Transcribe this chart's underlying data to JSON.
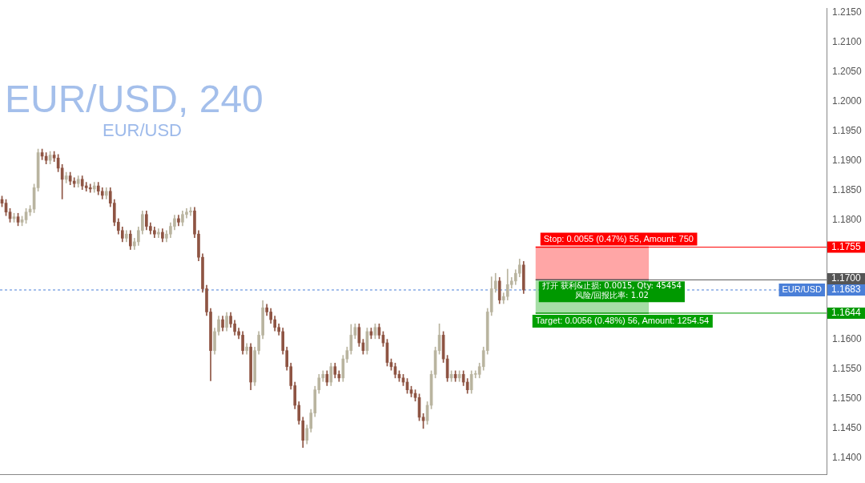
{
  "chart_data": {
    "type": "candlestick",
    "title": "EUR/USD, 240",
    "subtitle": "EUR/USD",
    "categories": [
      null,
      null,
      null,
      null,
      null,
      null,
      null,
      null,
      null,
      null,
      null,
      null,
      null,
      null,
      null,
      null,
      null,
      null,
      null,
      null,
      null,
      null,
      null,
      null,
      null,
      null,
      null,
      null,
      null,
      null,
      null,
      null,
      null,
      null,
      null,
      null,
      null,
      null,
      null,
      null,
      null,
      null,
      null,
      null,
      null,
      null,
      null,
      null,
      null,
      null,
      null,
      null,
      null,
      null,
      null,
      null,
      null,
      null,
      null,
      null,
      null,
      null,
      null,
      null,
      null,
      null,
      null,
      null,
      null,
      null,
      null,
      null,
      null,
      null,
      null,
      null,
      null,
      null,
      null,
      null,
      null,
      null,
      null,
      null,
      null,
      null,
      null,
      null,
      null,
      null,
      null,
      null,
      null,
      null,
      null,
      null,
      null,
      null,
      null,
      null,
      null,
      null,
      null,
      null,
      null,
      null,
      null,
      null,
      null,
      null,
      null,
      null,
      null,
      null,
      null,
      null,
      null,
      null,
      null,
      null,
      null,
      null,
      null,
      null,
      null,
      null,
      null,
      null,
      null,
      null,
      null,
      null,
      null,
      null,
      null,
      null,
      null,
      null,
      null,
      null,
      null,
      null,
      null,
      null,
      null,
      null,
      null,
      null,
      null,
      null,
      null,
      null,
      null,
      null,
      null,
      null,
      null,
      null,
      null,
      null,
      null,
      null,
      null,
      null,
      null,
      null,
      null,
      null,
      null,
      null,
      null,
      null,
      null,
      null,
      null,
      null,
      null,
      null,
      null,
      null,
      null,
      null,
      null,
      null,
      null,
      null,
      null,
      null,
      null,
      null,
      null,
      null,
      null,
      null,
      null,
      null,
      null,
      null,
      null,
      null,
      null,
      null,
      null,
      null,
      null,
      null
    ],
    "colors": [
      "#8e5443",
      "#8e5443",
      "#8e5443",
      "#b9b49f",
      "#8e5443",
      "#b9b49f",
      "#b9b49f",
      "#b9b49f",
      "#b9b49f",
      "#b9b49f",
      "#8e5443",
      "#8e5443",
      "#b9b49f",
      "#8e5443",
      "#8e5443",
      "#8e5443",
      "#b9b49f",
      "#8e5443",
      "#8e5443",
      "#b9b49f",
      "#8e5443",
      "#8e5443",
      "#8e5443",
      "#b9b49f",
      "#8e5443",
      "#8e5443",
      "#b9b49f",
      "#8e5443",
      "#8e5443",
      "#8e5443",
      "#8e5443",
      "#b9b49f",
      "#8e5443",
      "#b9b49f",
      "#b9b49f",
      "#b9b49f",
      "#8e5443",
      "#8e5443",
      "#8e5443",
      "#b9b49f",
      "#8e5443",
      "#b9b49f",
      "#b9b49f",
      "#b9b49f",
      "#8e5443",
      "#b9b49f",
      "#b9b49f",
      "#b9b49f",
      "#8e5443",
      "#8e5443",
      "#8e5443",
      "#8e5443",
      "#8e5443",
      "#b9b49f",
      "#b9b49f",
      "#8e5443",
      "#b9b49f",
      "#8e5443",
      "#8e5443",
      "#8e5443",
      "#8e5443",
      "#b9b49f",
      "#8e5443",
      "#b9b49f",
      "#b9b49f",
      "#b9b49f",
      "#8e5443",
      "#8e5443",
      "#8e5443",
      "#8e5443",
      "#8e5443",
      "#8e5443",
      "#8e5443",
      "#8e5443",
      "#8e5443",
      "#8e5443",
      "#b9b49f",
      "#b9b49f",
      "#b9b49f",
      "#b9b49f",
      "#b9b49f",
      "#8e5443",
      "#b9b49f",
      "#8e5443",
      "#8e5443",
      "#b9b49f",
      "#b9b49f",
      "#b9b49f",
      "#b9b49f",
      "#8e5443",
      "#8e5443",
      "#b9b49f",
      "#8e5443",
      "#b9b49f",
      "#8e5443",
      "#8e5443",
      "#8e5443",
      "#8e5443",
      "#8e5443",
      "#8e5443",
      "#8e5443",
      "#8e5443",
      "#8e5443",
      "#8e5443",
      "#8e5443",
      "#8e5443",
      "#b9b49f",
      "#b9b49f",
      "#b9b49f",
      "#b9b49f",
      "#8e5443",
      "#8e5443",
      "#b9b49f",
      "#8e5443",
      "#b9b49f",
      "#8e5443",
      "#8e5443",
      "#b9b49f",
      "#b9b49f",
      "#b9b49f",
      "#b9b49f",
      "#b9b49f",
      "#b9b49f",
      "#b9b49f",
      "#8e5443",
      "#b9b49f",
      "#b9b49f",
      "#b9b49f",
      "#b9b49f",
      "#b9b49f",
      "#8e5443",
      null,
      null,
      null,
      null,
      null,
      null,
      null,
      null,
      null,
      null,
      null,
      null,
      null,
      null,
      null,
      null,
      null,
      null,
      null,
      null,
      null,
      null,
      null,
      null,
      null,
      null,
      null,
      null,
      null,
      null,
      null,
      null,
      null,
      null,
      null,
      null,
      null,
      null,
      null,
      null,
      null,
      null,
      null,
      null,
      null,
      null,
      null,
      null,
      null,
      null,
      null,
      null,
      null,
      null,
      null,
      null,
      null,
      null,
      null,
      null,
      null,
      null,
      null,
      null,
      null,
      null,
      null,
      null,
      null,
      null,
      null,
      null,
      null,
      null,
      null
    ],
    "ohlc": [
      [
        1.1835,
        1.1841,
        1.1823,
        1.1829
      ],
      [
        1.1829,
        1.1835,
        1.1808,
        1.1814
      ],
      [
        1.1814,
        1.182,
        1.1797,
        1.1803
      ],
      [
        1.1803,
        1.1812,
        1.1797,
        1.1806
      ],
      [
        1.1806,
        1.1812,
        1.1791,
        1.1797
      ],
      [
        1.1797,
        1.1807,
        1.1791,
        1.1801
      ],
      [
        1.1801,
        1.182,
        1.1795,
        1.1814
      ],
      [
        1.1814,
        1.1825,
        1.1808,
        1.1819
      ],
      [
        1.1819,
        1.1861,
        1.1813,
        1.1855
      ],
      [
        1.1855,
        1.192,
        1.1849,
        1.1914
      ],
      [
        1.1914,
        1.192,
        1.1902,
        1.1908
      ],
      [
        1.1908,
        1.1914,
        1.1895,
        1.1901
      ],
      [
        1.1901,
        1.1916,
        1.1895,
        1.191
      ],
      [
        1.191,
        1.1916,
        1.1899,
        1.1905
      ],
      [
        1.1905,
        1.1911,
        1.1882,
        1.1888
      ],
      [
        1.1888,
        1.1894,
        1.1836,
        1.1869
      ],
      [
        1.1869,
        1.1881,
        1.1863,
        1.1875
      ],
      [
        1.1875,
        1.1881,
        1.186,
        1.1866
      ],
      [
        1.1866,
        1.1872,
        1.1856,
        1.1862
      ],
      [
        1.1862,
        1.1875,
        1.1856,
        1.1869
      ],
      [
        1.1869,
        1.1875,
        1.1852,
        1.1858
      ],
      [
        1.1858,
        1.1864,
        1.1849,
        1.1855
      ],
      [
        1.1855,
        1.1861,
        1.1847,
        1.1853
      ],
      [
        1.1853,
        1.1864,
        1.1847,
        1.1858
      ],
      [
        1.1858,
        1.1864,
        1.1843,
        1.1849
      ],
      [
        1.1849,
        1.1855,
        1.1836,
        1.1842
      ],
      [
        1.1842,
        1.1855,
        1.1836,
        1.1849
      ],
      [
        1.1849,
        1.1855,
        1.1823,
        1.1829
      ],
      [
        1.1829,
        1.1835,
        1.1791,
        1.1797
      ],
      [
        1.1797,
        1.1803,
        1.1777,
        1.1783
      ],
      [
        1.1783,
        1.1789,
        1.1764,
        1.177
      ],
      [
        1.177,
        1.1783,
        1.1764,
        1.1777
      ],
      [
        1.1777,
        1.1783,
        1.1751,
        1.1757
      ],
      [
        1.1757,
        1.177,
        1.1751,
        1.1764
      ],
      [
        1.1764,
        1.1789,
        1.1758,
        1.1783
      ],
      [
        1.1783,
        1.1816,
        1.1777,
        1.181
      ],
      [
        1.181,
        1.1816,
        1.1784,
        1.179
      ],
      [
        1.179,
        1.1796,
        1.1777,
        1.1783
      ],
      [
        1.1783,
        1.1789,
        1.1771,
        1.1777
      ],
      [
        1.1777,
        1.1786,
        1.1771,
        1.178
      ],
      [
        1.178,
        1.1786,
        1.1764,
        1.177
      ],
      [
        1.177,
        1.1783,
        1.1764,
        1.1777
      ],
      [
        1.1777,
        1.1796,
        1.1771,
        1.179
      ],
      [
        1.179,
        1.1809,
        1.1784,
        1.1803
      ],
      [
        1.1803,
        1.1809,
        1.1791,
        1.1797
      ],
      [
        1.1797,
        1.1816,
        1.1791,
        1.181
      ],
      [
        1.181,
        1.182,
        1.1804,
        1.1814
      ],
      [
        1.1814,
        1.1822,
        1.1808,
        1.1816
      ],
      [
        1.1816,
        1.1822,
        1.1771,
        1.1777
      ],
      [
        1.1777,
        1.1783,
        1.1732,
        1.1738
      ],
      [
        1.1738,
        1.1744,
        1.1679,
        1.1685
      ],
      [
        1.1685,
        1.1691,
        1.164,
        1.1646
      ],
      [
        1.1646,
        1.1652,
        1.153,
        1.1581
      ],
      [
        1.1581,
        1.1619,
        1.1575,
        1.1613
      ],
      [
        1.1613,
        1.1639,
        1.1607,
        1.1633
      ],
      [
        1.1633,
        1.1639,
        1.1614,
        1.162
      ],
      [
        1.162,
        1.1645,
        1.1614,
        1.1639
      ],
      [
        1.1639,
        1.1645,
        1.162,
        1.1626
      ],
      [
        1.1626,
        1.1632,
        1.1607,
        1.1613
      ],
      [
        1.1613,
        1.1619,
        1.1601,
        1.1607
      ],
      [
        1.1607,
        1.1613,
        1.1575,
        1.1581
      ],
      [
        1.1581,
        1.1593,
        1.1575,
        1.1587
      ],
      [
        1.1587,
        1.1593,
        1.1515,
        1.1528
      ],
      [
        1.1528,
        1.1587,
        1.1522,
        1.1581
      ],
      [
        1.1581,
        1.1613,
        1.1575,
        1.1607
      ],
      [
        1.1607,
        1.1665,
        1.1601,
        1.1653
      ],
      [
        1.1653,
        1.1659,
        1.164,
        1.1646
      ],
      [
        1.1646,
        1.1652,
        1.1627,
        1.1633
      ],
      [
        1.1633,
        1.1639,
        1.1614,
        1.162
      ],
      [
        1.162,
        1.1626,
        1.1607,
        1.1613
      ],
      [
        1.1613,
        1.1619,
        1.1575,
        1.1581
      ],
      [
        1.1581,
        1.1587,
        1.1548,
        1.1554
      ],
      [
        1.1554,
        1.156,
        1.1516,
        1.1522
      ],
      [
        1.1522,
        1.1528,
        1.1483,
        1.1489
      ],
      [
        1.1489,
        1.1495,
        1.1457,
        1.1463
      ],
      [
        1.1463,
        1.1469,
        1.1418,
        1.143
      ],
      [
        1.143,
        1.1456,
        1.1424,
        1.145
      ],
      [
        1.145,
        1.1482,
        1.1444,
        1.1476
      ],
      [
        1.1476,
        1.1521,
        1.147,
        1.1515
      ],
      [
        1.1515,
        1.1541,
        1.1509,
        1.1535
      ],
      [
        1.1535,
        1.1547,
        1.1529,
        1.1541
      ],
      [
        1.1541,
        1.1547,
        1.1522,
        1.1528
      ],
      [
        1.1528,
        1.156,
        1.1522,
        1.1554
      ],
      [
        1.1554,
        1.156,
        1.1535,
        1.1541
      ],
      [
        1.1541,
        1.1547,
        1.1529,
        1.1535
      ],
      [
        1.1535,
        1.1573,
        1.1529,
        1.1567
      ],
      [
        1.1567,
        1.1587,
        1.1561,
        1.1581
      ],
      [
        1.1581,
        1.1625,
        1.1575,
        1.1607
      ],
      [
        1.1607,
        1.1626,
        1.1601,
        1.162
      ],
      [
        1.162,
        1.1626,
        1.1588,
        1.1594
      ],
      [
        1.1594,
        1.16,
        1.1575,
        1.1581
      ],
      [
        1.1581,
        1.1619,
        1.1575,
        1.1613
      ],
      [
        1.1613,
        1.1619,
        1.1601,
        1.1607
      ],
      [
        1.1607,
        1.1626,
        1.1601,
        1.162
      ],
      [
        1.162,
        1.1626,
        1.1601,
        1.1607
      ],
      [
        1.1607,
        1.1613,
        1.1588,
        1.1594
      ],
      [
        1.1594,
        1.16,
        1.1555,
        1.1561
      ],
      [
        1.1561,
        1.1567,
        1.1548,
        1.1554
      ],
      [
        1.1554,
        1.156,
        1.1535,
        1.1541
      ],
      [
        1.1541,
        1.1547,
        1.1529,
        1.1535
      ],
      [
        1.1535,
        1.1541,
        1.1522,
        1.1528
      ],
      [
        1.1528,
        1.1534,
        1.1509,
        1.1515
      ],
      [
        1.1515,
        1.1521,
        1.1503,
        1.1509
      ],
      [
        1.1509,
        1.1515,
        1.1496,
        1.1502
      ],
      [
        1.1502,
        1.1508,
        1.1463,
        1.1469
      ],
      [
        1.1469,
        1.1475,
        1.145,
        1.1463
      ],
      [
        1.1463,
        1.1495,
        1.1457,
        1.1489
      ],
      [
        1.1489,
        1.1547,
        1.1483,
        1.1541
      ],
      [
        1.1541,
        1.1587,
        1.1535,
        1.1581
      ],
      [
        1.1581,
        1.1626,
        1.1575,
        1.1607
      ],
      [
        1.1607,
        1.1613,
        1.1561,
        1.1567
      ],
      [
        1.1567,
        1.1573,
        1.1529,
        1.1535
      ],
      [
        1.1535,
        1.1547,
        1.1529,
        1.1541
      ],
      [
        1.1541,
        1.1547,
        1.1529,
        1.1535
      ],
      [
        1.1535,
        1.1547,
        1.1529,
        1.1541
      ],
      [
        1.1541,
        1.1547,
        1.1522,
        1.1528
      ],
      [
        1.1528,
        1.1534,
        1.1509,
        1.1515
      ],
      [
        1.1515,
        1.1547,
        1.1509,
        1.1541
      ],
      [
        1.1541,
        1.1547,
        1.1535,
        1.1541
      ],
      [
        1.1541,
        1.156,
        1.1535,
        1.1554
      ],
      [
        1.1554,
        1.1587,
        1.1548,
        1.1581
      ],
      [
        1.1581,
        1.1652,
        1.1575,
        1.1646
      ],
      [
        1.1646,
        1.1705,
        1.164,
        1.1685
      ],
      [
        1.1685,
        1.1711,
        1.1679,
        1.1698
      ],
      [
        1.1698,
        1.1704,
        1.166,
        1.1666
      ],
      [
        1.1666,
        1.1678,
        1.166,
        1.1672
      ],
      [
        1.1672,
        1.1718,
        1.1666,
        1.1692
      ],
      [
        1.1692,
        1.1704,
        1.1686,
        1.1698
      ],
      [
        1.1698,
        1.1717,
        1.1692,
        1.1711
      ],
      [
        1.1711,
        1.1735,
        1.1705,
        1.1725
      ],
      [
        1.1725,
        1.1731,
        1.1677,
        1.1683
      ],
      null,
      null,
      null,
      null,
      null,
      null,
      null,
      null,
      null,
      null,
      null,
      null,
      null,
      null,
      null,
      null,
      null,
      null,
      null,
      null,
      null,
      null,
      null,
      null,
      null,
      null,
      null,
      null,
      null,
      null,
      null,
      null,
      null,
      null,
      null,
      null,
      null,
      null,
      null,
      null,
      null,
      null,
      null,
      null,
      null,
      null,
      null,
      null,
      null,
      null,
      null,
      null,
      null,
      null,
      null,
      null,
      null,
      null,
      null,
      null,
      null,
      null,
      null,
      null,
      null,
      null,
      null,
      null,
      null,
      null,
      null,
      null,
      null,
      null,
      null
    ],
    "ylim": [
      1.1372,
      1.2157
    ],
    "yticks": [
      {
        "value": 1.14,
        "label": "1.1400"
      },
      {
        "value": 1.145,
        "label": "1.1450"
      },
      {
        "value": 1.15,
        "label": "1.1500"
      },
      {
        "value": 1.155,
        "label": "1.1550"
      },
      {
        "value": 1.16,
        "label": "1.1600"
      },
      {
        "value": 1.18,
        "label": "1.1800"
      },
      {
        "value": 1.185,
        "label": "1.1850"
      },
      {
        "value": 1.19,
        "label": "1.1900"
      },
      {
        "value": 1.195,
        "label": "1.1950"
      },
      {
        "value": 1.2,
        "label": "1.2000"
      },
      {
        "value": 1.205,
        "label": "1.2050"
      },
      {
        "value": 1.21,
        "label": "1.2100"
      },
      {
        "value": 1.215,
        "label": "1.2150"
      }
    ],
    "tick_labels": "y",
    "grid": false,
    "legend": false,
    "ref_lines": [
      {
        "axis": "y",
        "value": 1.1755,
        "label": "1.1755",
        "color": "#ff0000"
      },
      {
        "axis": "y",
        "value": 1.17,
        "label": "1.1700",
        "color": "#555555"
      },
      {
        "axis": "y",
        "value": 1.1683,
        "label": "1.1683",
        "color": "#4a7fd8",
        "line_style": "dashed"
      },
      {
        "axis": "y",
        "value": 1.1644,
        "label": "1.1644",
        "color": "#009900"
      }
    ],
    "bands": [
      {
        "axis": "y",
        "from": 1.17,
        "to": 1.1755,
        "label": "Stop: 0.0055 (0.47%) 55, Amount: 750",
        "color": "#ff0000"
      },
      {
        "axis": "y",
        "from": 1.1644,
        "to": 1.17,
        "label": "Target: 0.0056 (0.48%) 56, Amount: 1254.54",
        "color": "#00a000"
      }
    ],
    "annotations": [
      {
        "text": "打开 获利&止损: 0.0015, Qty: 45454",
        "y": 1.17
      },
      {
        "text": "风险/回报比率: 1.02",
        "y": 1.17
      },
      "EUR/USD"
    ]
  }
}
